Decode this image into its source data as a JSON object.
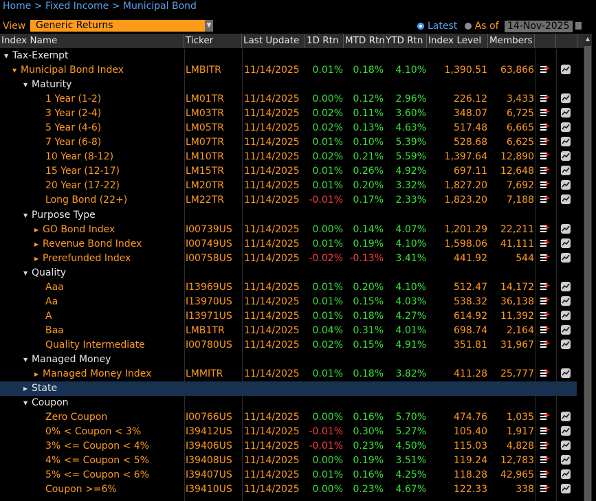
{
  "breadcrumb": {
    "items": [
      "Home",
      "Fixed Income",
      "Municipal Bond"
    ],
    "sep": ">"
  },
  "view": {
    "label": "View",
    "selected": "Generic Returns"
  },
  "date_mode": {
    "latest_label": "Latest",
    "asof_label": "As of",
    "date": "14-Nov-2025"
  },
  "columns": [
    "Index Name",
    "Ticker",
    "Last Update",
    "1D Rtn",
    "MTD Rtn",
    "YTD Rtn",
    "Index Level",
    "Members"
  ],
  "rows": [
    {
      "level": "n0",
      "tri": "down",
      "name": "Tax-Exempt"
    },
    {
      "level": "n1o",
      "tri": "down",
      "name": "Municipal Bond Index",
      "ticker": "LMBITR",
      "date": "11/14/2025",
      "d1": "0.01%",
      "mtd": "0.18%",
      "ytd": "4.10%",
      "lvl": "1,390.51",
      "mem": "63,866",
      "btn": true
    },
    {
      "level": "n2w",
      "tri": "down",
      "name": "Maturity"
    },
    {
      "level": "n3",
      "name": "1 Year (1-2)",
      "ticker": "LM01TR",
      "date": "11/14/2025",
      "d1": "0.00%",
      "mtd": "0.12%",
      "ytd": "2.96%",
      "lvl": "226.12",
      "mem": "3,433",
      "btn": true
    },
    {
      "level": "n3",
      "name": "3 Year (2-4)",
      "ticker": "LM03TR",
      "date": "11/14/2025",
      "d1": "0.02%",
      "mtd": "0.11%",
      "ytd": "3.60%",
      "lvl": "348.07",
      "mem": "6,725",
      "btn": true
    },
    {
      "level": "n3",
      "name": "5 Year (4-6)",
      "ticker": "LM05TR",
      "date": "11/14/2025",
      "d1": "0.02%",
      "mtd": "0.13%",
      "ytd": "4.63%",
      "lvl": "517.48",
      "mem": "6,665",
      "btn": true
    },
    {
      "level": "n3",
      "name": "7 Year (6-8)",
      "ticker": "LM07TR",
      "date": "11/14/2025",
      "d1": "0.01%",
      "mtd": "0.10%",
      "ytd": "5.39%",
      "lvl": "528.68",
      "mem": "6,625",
      "btn": true
    },
    {
      "level": "n3",
      "name": "10 Year (8-12)",
      "ticker": "LM10TR",
      "date": "11/14/2025",
      "d1": "0.02%",
      "mtd": "0.21%",
      "ytd": "5.59%",
      "lvl": "1,397.64",
      "mem": "12,890",
      "btn": true
    },
    {
      "level": "n3",
      "name": "15 Year (12-17)",
      "ticker": "LM15TR",
      "date": "11/14/2025",
      "d1": "0.01%",
      "mtd": "0.26%",
      "ytd": "4.92%",
      "lvl": "697.11",
      "mem": "12,648",
      "btn": true
    },
    {
      "level": "n3",
      "name": "20 Year (17-22)",
      "ticker": "LM20TR",
      "date": "11/14/2025",
      "d1": "0.01%",
      "mtd": "0.20%",
      "ytd": "3.32%",
      "lvl": "1,827.20",
      "mem": "7,692",
      "btn": true
    },
    {
      "level": "n3",
      "name": "Long Bond (22+)",
      "ticker": "LM22TR",
      "date": "11/14/2025",
      "d1": "-0.01%",
      "mtd": "0.17%",
      "ytd": "2.33%",
      "lvl": "1,823.20",
      "mem": "7,188",
      "btn": true
    },
    {
      "level": "n2w",
      "tri": "down",
      "name": "Purpose Type"
    },
    {
      "level": "n3a",
      "tri": "right",
      "name": "GO Bond Index",
      "ticker": "I00739US",
      "date": "11/14/2025",
      "d1": "0.00%",
      "mtd": "0.14%",
      "ytd": "4.07%",
      "lvl": "1,201.29",
      "mem": "22,211",
      "btn": true
    },
    {
      "level": "n3a",
      "tri": "right",
      "name": "Revenue Bond Index",
      "ticker": "I00749US",
      "date": "11/14/2025",
      "d1": "0.01%",
      "mtd": "0.19%",
      "ytd": "4.10%",
      "lvl": "1,598.06",
      "mem": "41,111",
      "btn": true
    },
    {
      "level": "n3a",
      "tri": "right",
      "name": "Prerefunded Index",
      "ticker": "I00758US",
      "date": "11/14/2025",
      "d1": "-0.02%",
      "mtd": "-0.13%",
      "ytd": "3.41%",
      "lvl": "441.92",
      "mem": "544",
      "btn": true
    },
    {
      "level": "n2w",
      "tri": "down",
      "name": "Quality"
    },
    {
      "level": "n3",
      "name": "Aaa",
      "ticker": "I13969US",
      "date": "11/14/2025",
      "d1": "0.01%",
      "mtd": "0.20%",
      "ytd": "4.10%",
      "lvl": "512.47",
      "mem": "14,172",
      "btn": true
    },
    {
      "level": "n3",
      "name": "Aa",
      "ticker": "I13970US",
      "date": "11/14/2025",
      "d1": "0.01%",
      "mtd": "0.15%",
      "ytd": "4.03%",
      "lvl": "538.32",
      "mem": "36,138",
      "btn": true
    },
    {
      "level": "n3",
      "name": "A",
      "ticker": "I13971US",
      "date": "11/14/2025",
      "d1": "0.01%",
      "mtd": "0.18%",
      "ytd": "4.27%",
      "lvl": "614.92",
      "mem": "11,392",
      "btn": true
    },
    {
      "level": "n3",
      "name": "Baa",
      "ticker": "LMB1TR",
      "date": "11/14/2025",
      "d1": "0.04%",
      "mtd": "0.31%",
      "ytd": "4.01%",
      "lvl": "698.74",
      "mem": "2,164",
      "btn": true
    },
    {
      "level": "n3",
      "name": "Quality Intermediate",
      "ticker": "I00780US",
      "date": "11/14/2025",
      "d1": "0.02%",
      "mtd": "0.15%",
      "ytd": "4.91%",
      "lvl": "351.81",
      "mem": "31,967",
      "btn": true
    },
    {
      "level": "n2w",
      "tri": "down",
      "name": "Managed Money"
    },
    {
      "level": "n3a",
      "tri": "right",
      "name": "Managed Money Index",
      "ticker": "LMMITR",
      "date": "11/14/2025",
      "d1": "0.01%",
      "mtd": "0.18%",
      "ytd": "3.82%",
      "lvl": "411.28",
      "mem": "25,777",
      "btn": true
    },
    {
      "level": "n2w",
      "tri": "right",
      "name": "State",
      "selected": true
    },
    {
      "level": "n2w",
      "tri": "down",
      "name": "Coupon"
    },
    {
      "level": "n3",
      "name": "Zero Coupon",
      "ticker": "I00766US",
      "date": "11/14/2025",
      "d1": "0.00%",
      "mtd": "0.16%",
      "ytd": "5.70%",
      "lvl": "474.76",
      "mem": "1,035",
      "btn": true
    },
    {
      "level": "n3",
      "name": "0% < Coupon < 3%",
      "ticker": "I39412US",
      "date": "11/14/2025",
      "d1": "-0.01%",
      "mtd": "0.30%",
      "ytd": "5.27%",
      "lvl": "105.40",
      "mem": "1,917",
      "btn": true
    },
    {
      "level": "n3",
      "name": "3% <= Coupon < 4%",
      "ticker": "I39406US",
      "date": "11/14/2025",
      "d1": "-0.01%",
      "mtd": "0.23%",
      "ytd": "4.50%",
      "lvl": "115.03",
      "mem": "4,828",
      "btn": true
    },
    {
      "level": "n3",
      "name": "4% <= Coupon < 5%",
      "ticker": "I39408US",
      "date": "11/14/2025",
      "d1": "0.00%",
      "mtd": "0.19%",
      "ytd": "3.51%",
      "lvl": "119.24",
      "mem": "12,783",
      "btn": true
    },
    {
      "level": "n3",
      "name": "5% <= Coupon < 6%",
      "ticker": "I39407US",
      "date": "11/14/2025",
      "d1": "0.01%",
      "mtd": "0.16%",
      "ytd": "4.25%",
      "lvl": "118.28",
      "mem": "42,965",
      "btn": true
    },
    {
      "level": "n3",
      "name": "Coupon >=6%",
      "ticker": "I39410US",
      "date": "11/14/2025",
      "d1": "0.00%",
      "mtd": "0.23%",
      "ytd": "4.67%",
      "lvl": "122.33",
      "mem": "338",
      "btn": true
    }
  ],
  "colors": {
    "accent": "#ff9b1a",
    "positive": "#37e437",
    "negative": "#ff3b3b",
    "link": "#5aa0e6",
    "selected_row": "#173253"
  },
  "icons": {
    "add": "add-to-list-icon",
    "chart": "chart-icon",
    "expand": "triangle-icon"
  }
}
